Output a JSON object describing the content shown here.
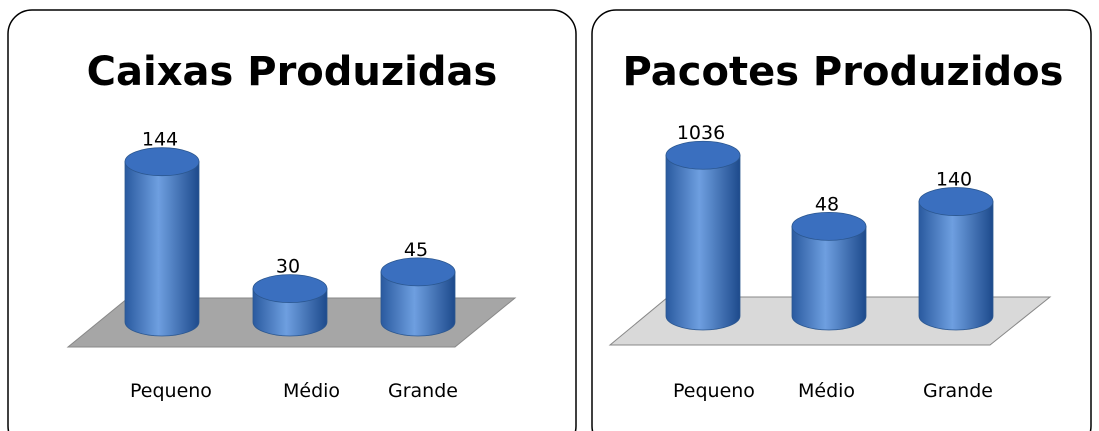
{
  "chart_data": [
    {
      "type": "bar3d",
      "title": "Caixas Produzidas",
      "categories": [
        "Pequeno",
        "Médio",
        "Grande"
      ],
      "values": [
        144,
        30,
        45
      ],
      "color": "#3a6fbf",
      "ylim": [
        0,
        150
      ],
      "log": false
    },
    {
      "type": "bar3d",
      "title": "Pacotes Produzidos",
      "categories": [
        "Pequeno",
        "Médio",
        "Grande"
      ],
      "values": [
        1036,
        48,
        140
      ],
      "color": "#3a6fbf",
      "ylim": [
        1,
        2000
      ],
      "log": true
    }
  ]
}
